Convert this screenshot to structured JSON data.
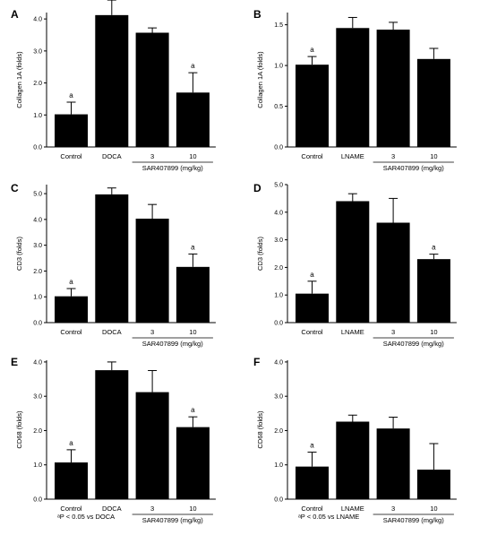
{
  "chart_data": [
    {
      "type": "bar",
      "panel_label": "A",
      "ylabel": "Collagen 1A (folds)",
      "categories": [
        "Control",
        "DOCA",
        "3",
        "10"
      ],
      "values": [
        1.02,
        4.12,
        3.57,
        1.7
      ],
      "errors": [
        0.38,
        0.47,
        0.15,
        0.62
      ],
      "significance": [
        "a",
        "",
        "",
        "a"
      ],
      "ylim": [
        0,
        4.2
      ],
      "yticks": [
        "0.0",
        "1.0",
        "2.0",
        "3.0",
        "4.0"
      ],
      "group_label": "SAR407899 (mg/kg)",
      "footnote": ""
    },
    {
      "type": "bar",
      "panel_label": "B",
      "ylabel": "Collagen 1A (folds)",
      "categories": [
        "Control",
        "LNAME",
        "3",
        "10"
      ],
      "values": [
        1.01,
        1.46,
        1.44,
        1.08
      ],
      "errors": [
        0.1,
        0.13,
        0.09,
        0.13
      ],
      "significance": [
        "a",
        "",
        "",
        ""
      ],
      "ylim": [
        0,
        1.65
      ],
      "yticks": [
        "0.0",
        "0.5",
        "1.0",
        "1.5"
      ],
      "group_label": "SAR407899 (mg/kg)",
      "footnote": ""
    },
    {
      "type": "bar",
      "panel_label": "C",
      "ylabel": "CD3 (folds)",
      "categories": [
        "Control",
        "DOCA",
        "3",
        "10"
      ],
      "values": [
        1.02,
        4.97,
        4.03,
        2.16
      ],
      "errors": [
        0.3,
        0.25,
        0.55,
        0.5
      ],
      "significance": [
        "a",
        "",
        "",
        "a"
      ],
      "ylim": [
        0,
        5.35
      ],
      "yticks": [
        "0.0",
        "1.0",
        "2.0",
        "3.0",
        "4.0",
        "5.0"
      ],
      "group_label": "SAR407899 (mg/kg)",
      "footnote": ""
    },
    {
      "type": "bar",
      "panel_label": "D",
      "ylabel": "CD3 (folds)",
      "categories": [
        "Control",
        "LNAME",
        "3",
        "10"
      ],
      "values": [
        1.05,
        4.4,
        3.62,
        2.3
      ],
      "errors": [
        0.45,
        0.27,
        0.88,
        0.18
      ],
      "significance": [
        "a",
        "",
        "",
        "a"
      ],
      "ylim": [
        0,
        5.0
      ],
      "yticks": [
        "0.0",
        "1.0",
        "2.0",
        "3.0",
        "4.0",
        "5.0"
      ],
      "group_label": "SAR407899 (mg/kg)",
      "footnote": ""
    },
    {
      "type": "bar",
      "panel_label": "E",
      "ylabel": "CD68 (folds)",
      "categories": [
        "Control",
        "DOCA",
        "3",
        "10"
      ],
      "values": [
        1.07,
        3.76,
        3.12,
        2.1
      ],
      "errors": [
        0.37,
        0.24,
        0.63,
        0.3
      ],
      "significance": [
        "a",
        "",
        "",
        "a"
      ],
      "ylim": [
        0,
        4.05
      ],
      "yticks": [
        "0.0",
        "1.0",
        "2.0",
        "3.0",
        "4.0"
      ],
      "group_label": "SAR407899 (mg/kg)",
      "footnote": "ᵃP < 0.05 vs DOCA"
    },
    {
      "type": "bar",
      "panel_label": "F",
      "ylabel": "CD68 (folds)",
      "categories": [
        "Control",
        "LNAME",
        "3",
        "10"
      ],
      "values": [
        0.95,
        2.26,
        2.06,
        0.86
      ],
      "errors": [
        0.42,
        0.19,
        0.33,
        0.76
      ],
      "significance": [
        "a",
        "",
        "",
        ""
      ],
      "ylim": [
        0,
        4.05
      ],
      "yticks": [
        "0.0",
        "1.0",
        "2.0",
        "3.0",
        "4.0"
      ],
      "group_label": "SAR407899 (mg/kg)",
      "footnote": "ᵃP < 0.05 vs LNAME"
    }
  ]
}
